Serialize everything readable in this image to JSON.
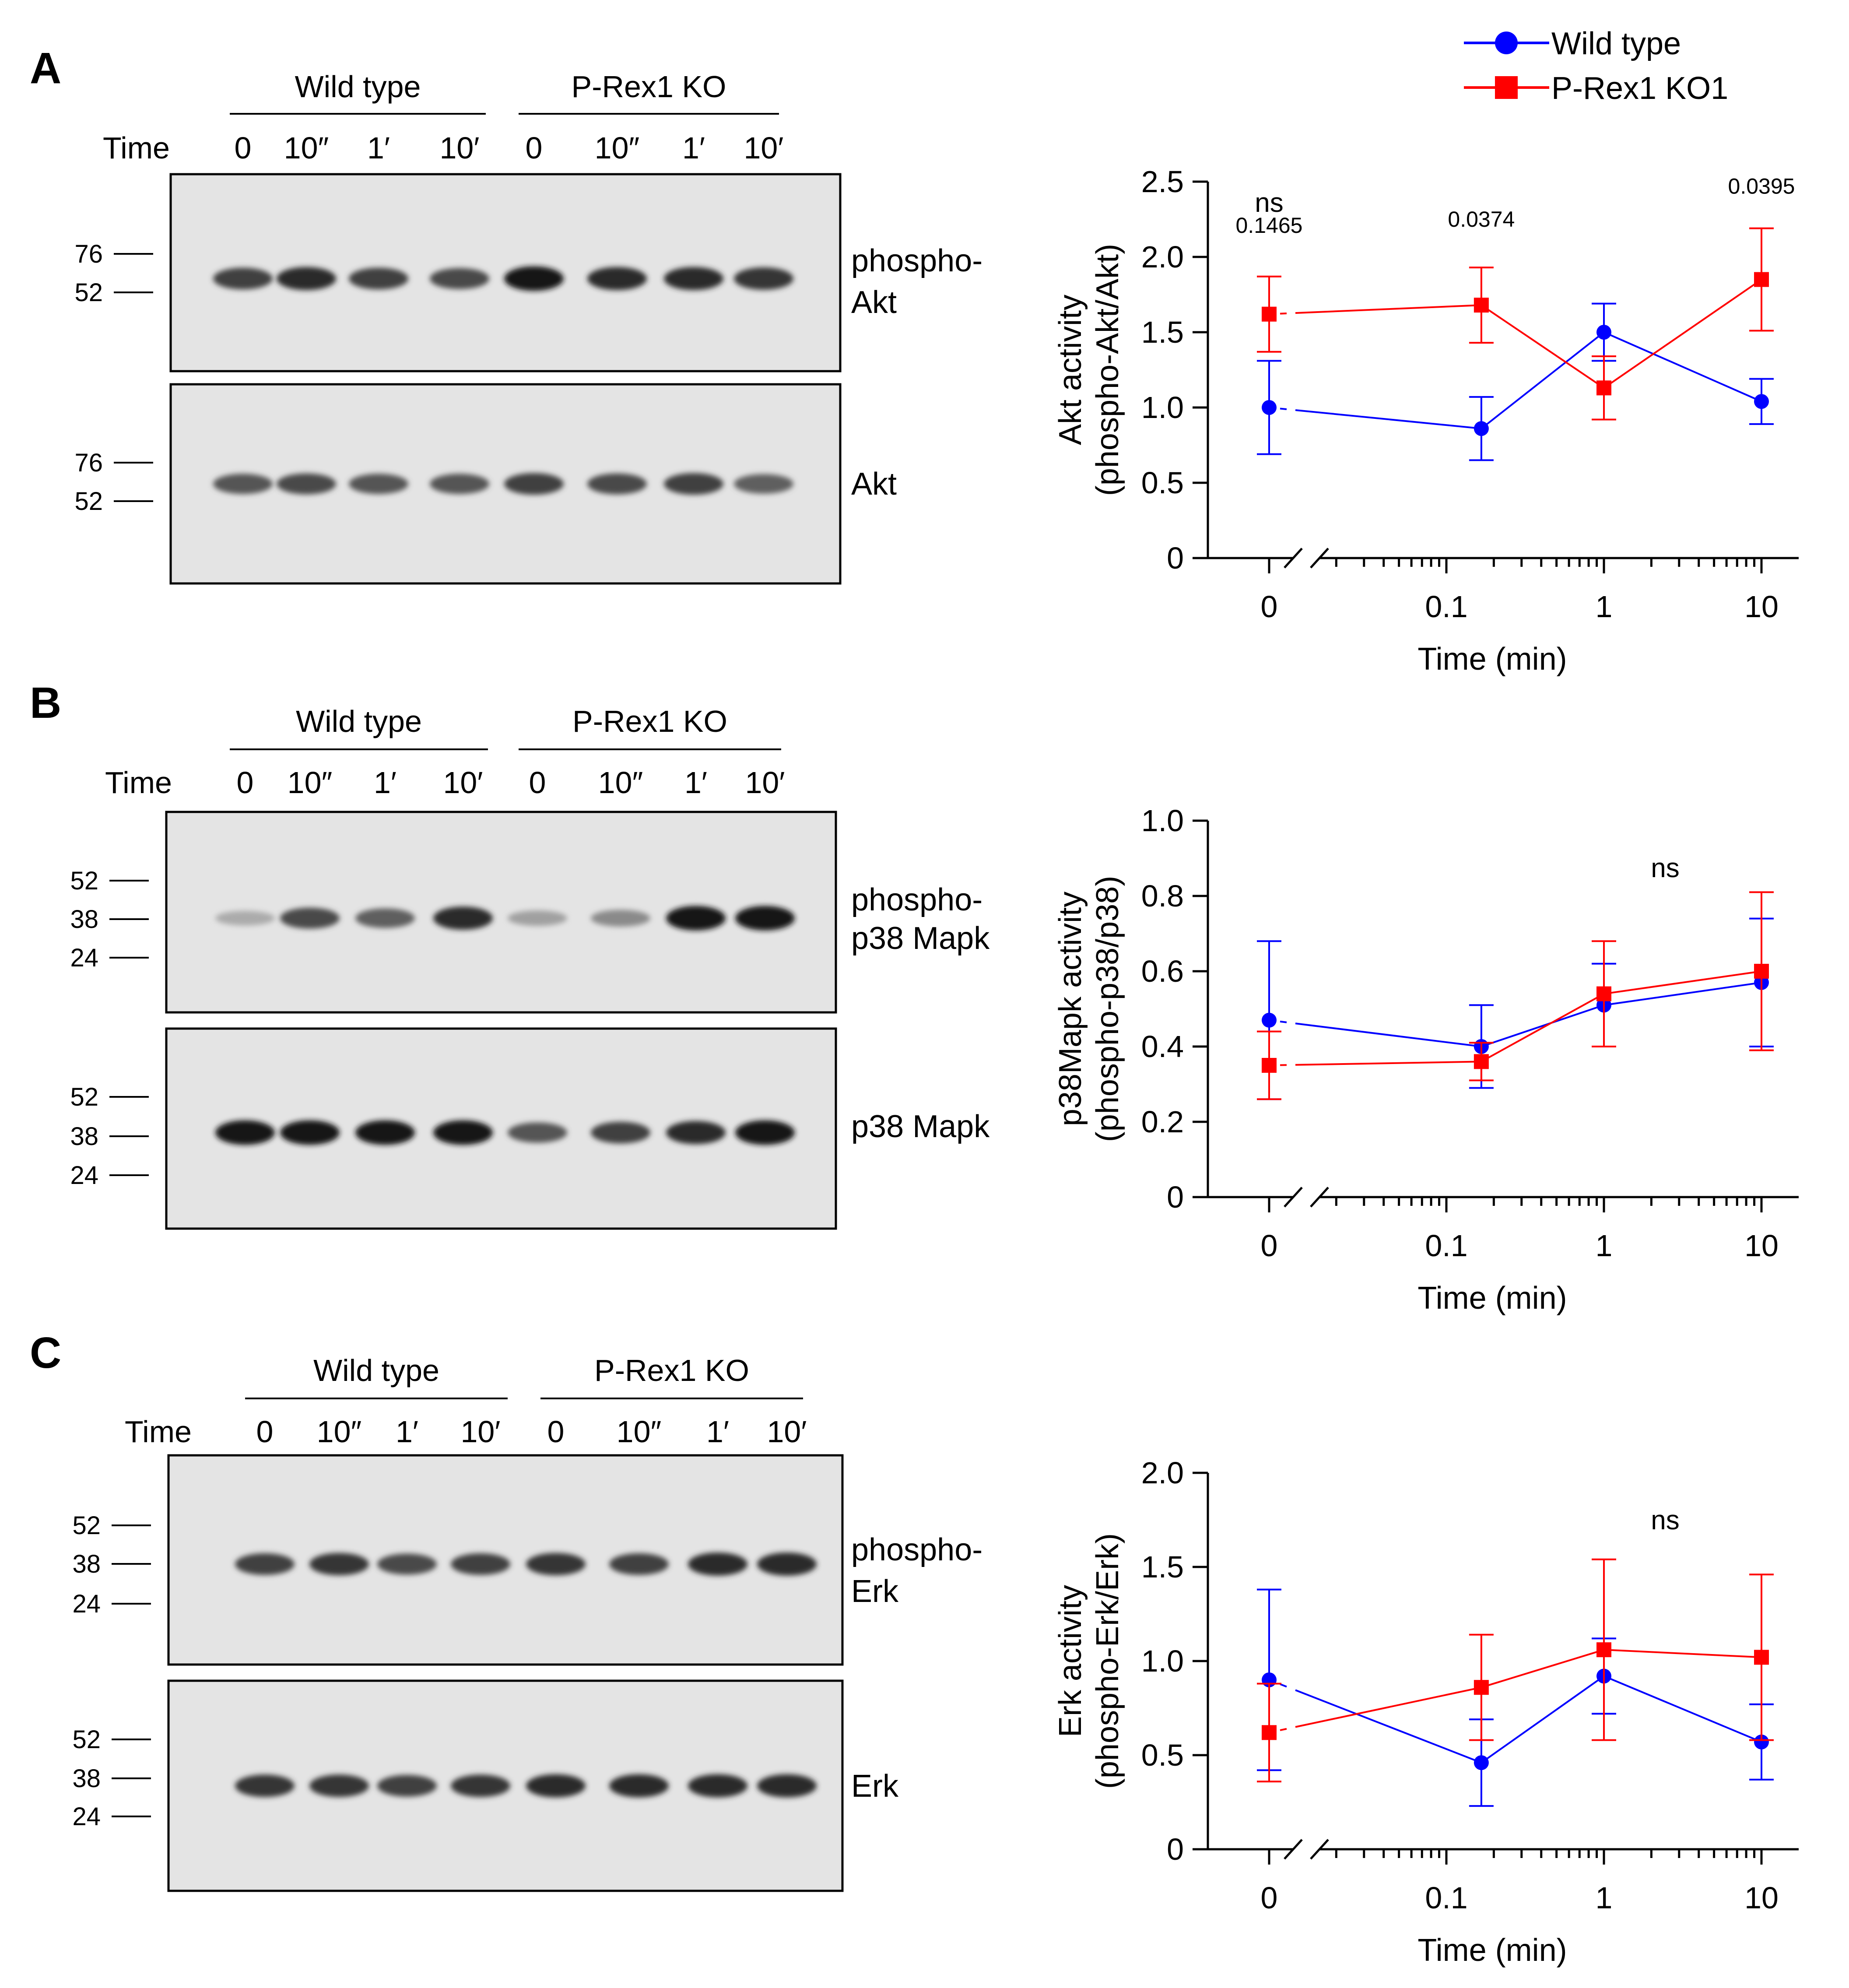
{
  "legend": {
    "items": [
      {
        "label": "Wild type",
        "color": "#0000ff",
        "marker": "circle"
      },
      {
        "label": "P-Rex1 KO1",
        "color": "#ff0000",
        "marker": "square"
      }
    ]
  },
  "panels": [
    {
      "letter": "A",
      "blot": {
        "group_labels": [
          "Wild type",
          "P-Rex1 KO"
        ],
        "time_label": "Time",
        "lanes": [
          "0",
          "10″",
          "1′",
          "10′",
          "0",
          "10″",
          "1′",
          "10′"
        ],
        "membranes": [
          {
            "label_lines": [
              "phospho-",
              "Akt"
            ],
            "markers": [
              "76",
              "52"
            ],
            "band_intensity": [
              0.8,
              0.9,
              0.8,
              0.75,
              1.0,
              0.9,
              0.9,
              0.85
            ],
            "band_position": 0.53
          },
          {
            "label_lines": [
              "Akt"
            ],
            "markers": [
              "76",
              "52"
            ],
            "band_intensity": [
              0.7,
              0.75,
              0.7,
              0.7,
              0.8,
              0.75,
              0.8,
              0.65
            ],
            "band_position": 0.5
          }
        ]
      }
    },
    {
      "letter": "B",
      "blot": {
        "group_labels": [
          "Wild type",
          "P-Rex1 KO"
        ],
        "time_label": "Time",
        "lanes": [
          "0",
          "10″",
          "1′",
          "10′",
          "0",
          "10″",
          "1′",
          "10′"
        ],
        "membranes": [
          {
            "label_lines": [
              "phospho-",
              "p38 Mapk"
            ],
            "markers": [
              "52",
              "38",
              "24"
            ],
            "band_intensity": [
              0.3,
              0.75,
              0.65,
              0.9,
              0.35,
              0.45,
              1.0,
              1.0
            ],
            "band_position": 0.53
          },
          {
            "label_lines": [
              "p38 Mapk"
            ],
            "markers": [
              "52",
              "38",
              "24"
            ],
            "band_intensity": [
              1.0,
              1.0,
              1.0,
              1.0,
              0.7,
              0.8,
              0.9,
              1.0
            ],
            "band_position": 0.52
          }
        ]
      }
    },
    {
      "letter": "C",
      "blot": {
        "group_labels": [
          "Wild type",
          "P-Rex1 KO"
        ],
        "time_label": "Time",
        "lanes": [
          "0",
          "10″",
          "1′",
          "10′",
          "0",
          "10″",
          "1′",
          "10′"
        ],
        "membranes": [
          {
            "label_lines": [
              "phospho-",
              "Erk"
            ],
            "markers": [
              "52",
              "38",
              "24"
            ],
            "band_intensity": [
              0.8,
              0.85,
              0.75,
              0.8,
              0.85,
              0.8,
              0.9,
              0.9
            ],
            "band_position": 0.52
          },
          {
            "label_lines": [
              "Erk"
            ],
            "markers": [
              "52",
              "38",
              "24"
            ],
            "band_intensity": [
              0.85,
              0.85,
              0.8,
              0.85,
              0.9,
              0.9,
              0.9,
              0.9
            ],
            "band_position": 0.5
          }
        ]
      }
    }
  ],
  "chart_data": [
    {
      "type": "line",
      "title": "",
      "xlabel": "Time (min)",
      "ylabel_lines": [
        "Akt activity",
        "(phospho-Akt/Akt)"
      ],
      "x_tick_labels": [
        "0",
        "0.1",
        "1",
        "10"
      ],
      "x": [
        0,
        0.1667,
        1,
        10
      ],
      "ylim": [
        0,
        2.5
      ],
      "y_ticks": [
        "0",
        "0.5",
        "1.0",
        "1.5",
        "2.0",
        "2.5"
      ],
      "series": [
        {
          "name": "Wild type",
          "values": [
            1.0,
            0.86,
            1.5,
            1.04
          ],
          "errors": [
            0.31,
            0.21,
            0.19,
            0.15
          ]
        },
        {
          "name": "P-Rex1 KO1",
          "values": [
            1.62,
            1.68,
            1.13,
            1.85
          ],
          "errors": [
            0.25,
            0.25,
            0.21,
            0.34
          ]
        }
      ],
      "annotations": [
        {
          "x": 0,
          "y": 2.3,
          "text": "ns"
        },
        {
          "x": 0,
          "y": 2.16,
          "text": "0.1465"
        },
        {
          "x": 0.1667,
          "y": 2.2,
          "text": "0.0374"
        },
        {
          "x": 10,
          "y": 2.42,
          "text": "0.0395"
        }
      ]
    },
    {
      "type": "line",
      "title": "",
      "xlabel": "Time (min)",
      "ylabel_lines": [
        "p38Mapk activity",
        "(phospho-p38/p38)"
      ],
      "x_tick_labels": [
        "0",
        "0.1",
        "1",
        "10"
      ],
      "x": [
        0,
        0.1667,
        1,
        10
      ],
      "ylim": [
        0,
        1.0
      ],
      "y_ticks": [
        "0",
        "0.2",
        "0.4",
        "0.6",
        "0.8",
        "1.0"
      ],
      "series": [
        {
          "name": "Wild type",
          "values": [
            0.47,
            0.4,
            0.51,
            0.57
          ],
          "errors": [
            0.21,
            0.11,
            0.11,
            0.17
          ]
        },
        {
          "name": "P-Rex1 KO1",
          "values": [
            0.35,
            0.36,
            0.54,
            0.6
          ],
          "errors": [
            0.09,
            0.05,
            0.14,
            0.21
          ]
        }
      ],
      "annotations": [
        {
          "x": 1.8,
          "y": 0.85,
          "text": "ns"
        }
      ]
    },
    {
      "type": "line",
      "title": "",
      "xlabel": "Time (min)",
      "ylabel_lines": [
        "Erk activity",
        "(phospho-Erk/Erk)"
      ],
      "x_tick_labels": [
        "0",
        "0.1",
        "1",
        "10"
      ],
      "x": [
        0,
        0.1667,
        1,
        10
      ],
      "ylim": [
        0,
        2.0
      ],
      "y_ticks": [
        "0",
        "0.5",
        "1.0",
        "1.5",
        "2.0"
      ],
      "series": [
        {
          "name": "Wild type",
          "values": [
            0.9,
            0.46,
            0.92,
            0.57
          ],
          "errors": [
            0.48,
            0.23,
            0.2,
            0.2
          ]
        },
        {
          "name": "P-Rex1 KO1",
          "values": [
            0.62,
            0.86,
            1.06,
            1.02
          ],
          "errors": [
            0.26,
            0.28,
            0.48,
            0.44
          ]
        }
      ],
      "annotations": [
        {
          "x": 1.8,
          "y": 1.7,
          "text": "ns"
        }
      ]
    }
  ]
}
